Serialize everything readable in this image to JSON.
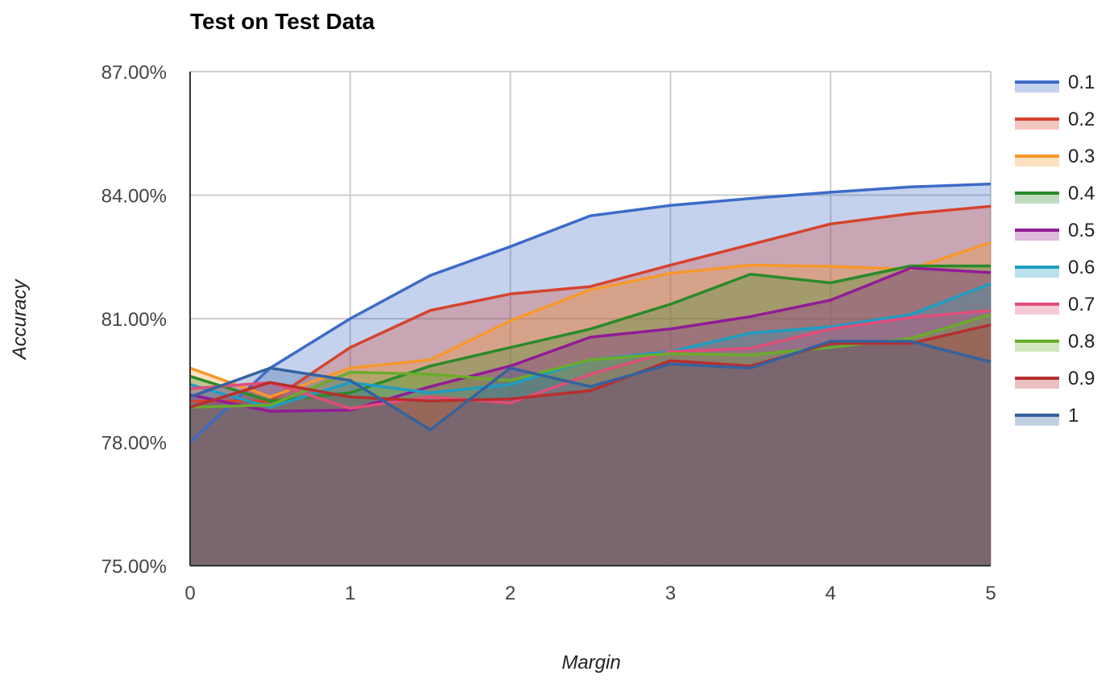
{
  "chart_data": {
    "type": "area",
    "title": "Test on Test Data",
    "xlabel": "Margin",
    "ylabel": "Accuracy",
    "x": [
      0,
      0.5,
      1,
      1.5,
      2,
      2.5,
      3,
      3.5,
      4,
      4.5,
      5
    ],
    "xticks": [
      0,
      1,
      2,
      3,
      4,
      5
    ],
    "xtick_labels": [
      "0",
      "1",
      "2",
      "3",
      "4",
      "5"
    ],
    "xlim": [
      0,
      5
    ],
    "yticks": [
      75,
      78,
      81,
      84,
      87
    ],
    "ytick_labels": [
      "75.00%",
      "78.00%",
      "81.00%",
      "84.00%",
      "87.00%"
    ],
    "ylim": [
      75,
      87
    ],
    "grid": true,
    "legend": "right",
    "series": [
      {
        "name": "0.1",
        "color": "#3d6bc7",
        "values": [
          78.0,
          79.8,
          81.0,
          82.05,
          82.75,
          83.5,
          83.75,
          83.92,
          84.07,
          84.2,
          84.27
        ]
      },
      {
        "name": "0.2",
        "color": "#d5432c",
        "values": [
          79.0,
          79.0,
          80.3,
          81.2,
          81.6,
          81.78,
          82.3,
          82.8,
          83.3,
          83.55,
          83.73
        ]
      },
      {
        "name": "0.3",
        "color": "#f7982a",
        "values": [
          79.8,
          79.1,
          79.8,
          80.0,
          80.95,
          81.7,
          82.1,
          82.3,
          82.27,
          82.2,
          82.85
        ]
      },
      {
        "name": "0.4",
        "color": "#2a8a2a",
        "values": [
          79.6,
          79.0,
          79.2,
          79.85,
          80.3,
          80.75,
          81.35,
          82.08,
          81.87,
          82.28,
          82.28
        ]
      },
      {
        "name": "0.5",
        "color": "#921b96",
        "values": [
          79.15,
          78.75,
          78.78,
          79.35,
          79.85,
          80.55,
          80.75,
          81.05,
          81.45,
          82.23,
          82.12
        ]
      },
      {
        "name": "0.6",
        "color": "#1e9dc2",
        "values": [
          79.4,
          78.85,
          79.45,
          79.2,
          79.4,
          80.0,
          80.2,
          80.65,
          80.8,
          81.1,
          81.85
        ]
      },
      {
        "name": "0.7",
        "color": "#e14d79",
        "values": [
          79.3,
          79.45,
          78.82,
          79.1,
          78.95,
          79.65,
          80.2,
          80.28,
          80.75,
          81.03,
          81.2
        ]
      },
      {
        "name": "0.8",
        "color": "#6aab2c",
        "values": [
          78.85,
          78.9,
          79.7,
          79.65,
          79.5,
          80.0,
          80.15,
          80.12,
          80.3,
          80.52,
          81.1
        ]
      },
      {
        "name": "0.9",
        "color": "#b82e2e",
        "values": [
          78.85,
          79.45,
          79.1,
          79.0,
          79.05,
          79.25,
          79.98,
          79.85,
          80.4,
          80.4,
          80.85
        ]
      },
      {
        "name": "1",
        "color": "#34629e",
        "values": [
          79.1,
          79.8,
          79.5,
          78.3,
          79.8,
          79.35,
          79.9,
          79.8,
          80.45,
          80.45,
          79.95
        ]
      }
    ]
  }
}
